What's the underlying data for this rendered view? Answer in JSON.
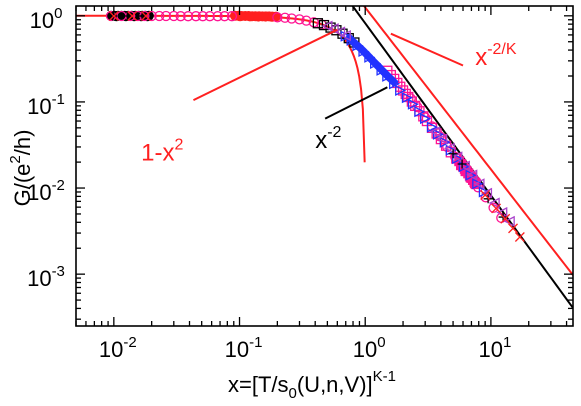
{
  "chart_data": {
    "type": "scatter",
    "xscale": "log",
    "yscale": "log",
    "xlim": [
      0.005,
      45
    ],
    "ylim": [
      0.00025,
      1.3
    ],
    "grid": false,
    "legend": "none",
    "xlabel": {
      "base": "x=[T/s",
      "sub": "0",
      "mid": "(U,n,V)]",
      "sup": "K-1"
    },
    "ylabel": {
      "pre": "G/(e",
      "sup": "2",
      "post": "/h)"
    },
    "xticks": [
      {
        "value": 0.01,
        "base": "10",
        "exp": "-2"
      },
      {
        "value": 0.1,
        "base": "10",
        "exp": "-1"
      },
      {
        "value": 1,
        "base": "10",
        "exp": "0"
      },
      {
        "value": 10,
        "base": "10",
        "exp": "1"
      }
    ],
    "yticks": [
      {
        "value": 1,
        "base": "10",
        "exp": "0"
      },
      {
        "value": 0.1,
        "base": "10",
        "exp": "-1"
      },
      {
        "value": 0.01,
        "base": "10",
        "exp": "-2"
      },
      {
        "value": 0.001,
        "base": "10",
        "exp": "-3"
      }
    ],
    "colors": {
      "red": "#ff2020",
      "black": "#000000",
      "magenta": "#ff1493",
      "blue": "#2233ff",
      "violet": "#aa44cc"
    },
    "curves": [
      {
        "kind": "one_minus_x2",
        "color": "#ff2020"
      },
      {
        "kind": "power_law",
        "exponent": -2,
        "prefactor": 0.82,
        "color": "#000000"
      },
      {
        "kind": "power_law",
        "exponent": -1.88,
        "prefactor": 1.25,
        "color": "#ff2020"
      }
    ],
    "annotations": [
      {
        "id": "one-minus-x2",
        "base": "1-x",
        "sup": "2",
        "color": "#ff2020",
        "x": 0.0165,
        "y": 0.021
      },
      {
        "id": "x-minus-2",
        "base": "x",
        "sup": "-2",
        "color": "#000000",
        "x": 0.4,
        "y": 0.029
      },
      {
        "id": "x-minus-2-over-K",
        "base": "x",
        "sup": "-2/K",
        "color": "#ff2020",
        "x": 7.5,
        "y": 0.27
      }
    ],
    "pointer_lines": [
      {
        "color": "#ff2020",
        "from": [
          0.043,
          0.105
        ],
        "to": [
          0.6,
          0.69
        ]
      },
      {
        "color": "#000000",
        "from": [
          0.48,
          0.064
        ],
        "to": [
          1.5,
          0.148
        ]
      },
      {
        "color": "#ff2020",
        "from": [
          1.6,
          0.62
        ],
        "to": [
          6.0,
          0.265
        ]
      }
    ],
    "series": [
      {
        "marker": "circle-filled",
        "color": "#000000",
        "points": [
          [
            0.0095,
            1.0
          ],
          [
            0.0101,
            1.0
          ],
          [
            0.0108,
            1.0
          ],
          [
            0.0115,
            1.0
          ],
          [
            0.0122,
            1.0
          ],
          [
            0.013,
            1.0
          ],
          [
            0.0139,
            1.0
          ],
          [
            0.0148,
            1.0
          ],
          [
            0.0158,
            1.0
          ],
          [
            0.0168,
            1.0
          ],
          [
            0.0178,
            1.0
          ],
          [
            0.019,
            1.0
          ],
          [
            0.0105,
            0.99
          ],
          [
            0.0125,
            0.99
          ],
          [
            0.0145,
            0.99
          ],
          [
            0.0165,
            0.99
          ],
          [
            0.0185,
            0.99
          ]
        ]
      },
      {
        "marker": "circle-filled",
        "color": "#ff2020",
        "points": [
          [
            0.092,
            1.0
          ],
          [
            0.098,
            1.0
          ],
          [
            0.104,
            0.995
          ],
          [
            0.111,
            0.995
          ],
          [
            0.118,
            0.995
          ],
          [
            0.126,
            0.99
          ],
          [
            0.134,
            0.99
          ],
          [
            0.143,
            0.99
          ],
          [
            0.152,
            0.985
          ],
          [
            0.162,
            0.985
          ],
          [
            0.172,
            0.985
          ],
          [
            0.183,
            0.98
          ],
          [
            0.195,
            0.98
          ],
          [
            0.101,
            0.99
          ],
          [
            0.121,
            0.985
          ],
          [
            0.141,
            0.98
          ],
          [
            0.161,
            0.98
          ],
          [
            0.181,
            0.975
          ]
        ]
      },
      {
        "marker": "circle-open",
        "color": "#ff1493",
        "points": [
          [
            0.0095,
            0.995
          ],
          [
            0.0115,
            0.995
          ],
          [
            0.0135,
            0.995
          ],
          [
            0.0155,
            0.995
          ],
          [
            0.0175,
            0.995
          ],
          [
            0.02,
            0.995
          ],
          [
            0.023,
            0.995
          ],
          [
            0.026,
            0.995
          ],
          [
            0.03,
            0.995
          ],
          [
            0.034,
            0.99
          ],
          [
            0.039,
            0.99
          ],
          [
            0.045,
            0.99
          ],
          [
            0.051,
            0.99
          ],
          [
            0.058,
            0.99
          ],
          [
            0.067,
            0.99
          ],
          [
            0.076,
            0.99
          ],
          [
            0.087,
            0.99
          ],
          [
            0.2,
            0.96
          ],
          [
            0.23,
            0.95
          ],
          [
            0.26,
            0.93
          ],
          [
            0.3,
            0.91
          ],
          [
            0.34,
            0.88
          ],
          [
            0.39,
            0.84
          ],
          [
            0.45,
            0.79
          ],
          [
            2.3,
            0.11
          ],
          [
            2.6,
            0.087
          ],
          [
            3.0,
            0.066
          ],
          [
            3.4,
            0.052
          ],
          [
            3.9,
            0.04
          ],
          [
            4.5,
            0.03
          ],
          [
            5.2,
            0.023
          ],
          [
            6.0,
            0.018
          ],
          [
            6.9,
            0.0135
          ],
          [
            7.9,
            0.0102
          ],
          [
            9.1,
            0.0078
          ],
          [
            10.5,
            0.0059
          ],
          [
            12.1,
            0.0045
          ]
        ]
      },
      {
        "marker": "square-open",
        "color": "#ff1493",
        "points": [
          [
            1.5,
            0.23
          ],
          [
            1.6,
            0.205
          ],
          [
            1.7,
            0.185
          ],
          [
            1.8,
            0.166
          ],
          [
            1.9,
            0.15
          ],
          [
            2.0,
            0.136
          ],
          [
            2.1,
            0.124
          ],
          [
            2.2,
            0.114
          ],
          [
            2.35,
            0.101
          ],
          [
            2.5,
            0.09
          ],
          [
            2.7,
            0.078
          ],
          [
            2.9,
            0.068
          ],
          [
            3.1,
            0.06
          ],
          [
            3.4,
            0.05
          ],
          [
            3.7,
            0.043
          ],
          [
            4.0,
            0.037
          ],
          [
            4.4,
            0.031
          ],
          [
            4.8,
            0.026
          ],
          [
            5.3,
            0.022
          ],
          [
            5.8,
            0.0185
          ],
          [
            6.3,
            0.0158
          ],
          [
            6.9,
            0.0134
          ],
          [
            7.5,
            0.0114
          ]
        ]
      },
      {
        "marker": "square-filled",
        "color": "#ff1493",
        "points": [
          [
            5.6,
            0.0205
          ],
          [
            5.8,
            0.019
          ],
          [
            6.0,
            0.0178
          ],
          [
            6.2,
            0.0167
          ],
          [
            6.4,
            0.0157
          ],
          [
            6.6,
            0.0148
          ],
          [
            6.8,
            0.0139
          ],
          [
            7.0,
            0.0131
          ],
          [
            7.2,
            0.0124
          ],
          [
            7.4,
            0.0117
          ],
          [
            7.6,
            0.0111
          ]
        ]
      },
      {
        "marker": "square-open",
        "color": "#000000",
        "points": [
          [
            0.42,
            0.82
          ],
          [
            0.47,
            0.78
          ],
          [
            0.53,
            0.73
          ],
          [
            0.59,
            0.68
          ],
          [
            0.66,
            0.62
          ],
          [
            0.74,
            0.55
          ],
          [
            0.82,
            0.49
          ]
        ]
      },
      {
        "marker": "diamond-filled",
        "color": "#2233ff",
        "points": [
          [
            0.75,
            0.55
          ],
          [
            0.8,
            0.5
          ],
          [
            0.85,
            0.46
          ],
          [
            0.9,
            0.43
          ],
          [
            0.95,
            0.4
          ],
          [
            1.0,
            0.37
          ],
          [
            1.05,
            0.345
          ],
          [
            1.1,
            0.32
          ],
          [
            1.15,
            0.3
          ],
          [
            1.2,
            0.28
          ],
          [
            1.26,
            0.262
          ],
          [
            1.32,
            0.244
          ],
          [
            1.38,
            0.228
          ],
          [
            1.45,
            0.212
          ],
          [
            1.52,
            0.198
          ],
          [
            1.6,
            0.184
          ],
          [
            1.68,
            0.172
          ]
        ]
      },
      {
        "marker": "triangle-right-open",
        "color": "#2233ff",
        "points": [
          [
            0.7,
            0.58
          ],
          [
            0.78,
            0.52
          ],
          [
            0.87,
            0.45
          ],
          [
            0.97,
            0.385
          ],
          [
            1.08,
            0.33
          ],
          [
            1.2,
            0.28
          ],
          [
            1.35,
            0.233
          ],
          [
            1.5,
            0.198
          ],
          [
            1.7,
            0.162
          ],
          [
            1.9,
            0.136
          ],
          [
            2.15,
            0.112
          ],
          [
            2.4,
            0.094
          ],
          [
            2.7,
            0.077
          ],
          [
            3.0,
            0.064
          ],
          [
            3.4,
            0.051
          ],
          [
            3.8,
            0.042
          ],
          [
            4.3,
            0.034
          ],
          [
            4.8,
            0.0275
          ],
          [
            5.4,
            0.022
          ],
          [
            6.1,
            0.0177
          ],
          [
            6.9,
            0.0141
          ],
          [
            7.8,
            0.0112
          ],
          [
            8.8,
            0.009
          ]
        ]
      },
      {
        "marker": "triangle-left-open",
        "color": "#aa44cc",
        "points": [
          [
            0.5,
            0.76
          ],
          [
            0.56,
            0.71
          ],
          [
            0.63,
            0.65
          ],
          [
            0.7,
            0.59
          ],
          [
            3.6,
            0.045
          ],
          [
            4.1,
            0.037
          ],
          [
            4.7,
            0.029
          ],
          [
            5.4,
            0.023
          ],
          [
            6.2,
            0.018
          ],
          [
            7.1,
            0.0142
          ],
          [
            8.1,
            0.0112
          ],
          [
            9.3,
            0.0087
          ],
          [
            10.7,
            0.0067
          ],
          [
            12.3,
            0.0052
          ],
          [
            14.1,
            0.0041
          ]
        ]
      },
      {
        "marker": "cross",
        "color": "#000000",
        "points": [
          [
            0.0098,
            0.995
          ],
          [
            0.0128,
            0.995
          ],
          [
            0.0168,
            0.995
          ],
          [
            5.0,
            0.025
          ],
          [
            5.9,
            0.019
          ],
          [
            9.5,
            0.0075
          ],
          [
            12.5,
            0.0046
          ]
        ]
      },
      {
        "marker": "x",
        "color": "#ff2020",
        "points": [
          [
            0.01,
            0.995
          ],
          [
            0.014,
            0.995
          ],
          [
            0.018,
            0.995
          ],
          [
            9.0,
            0.0083
          ],
          [
            11.0,
            0.0058
          ],
          [
            13.0,
            0.0044
          ],
          [
            15.0,
            0.0034
          ],
          [
            17.0,
            0.0027
          ]
        ]
      }
    ]
  }
}
